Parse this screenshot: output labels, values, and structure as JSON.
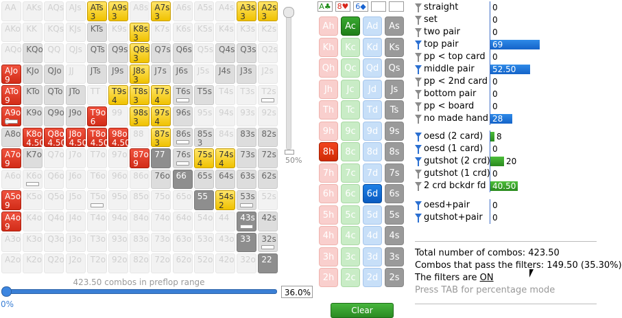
{
  "grid": {
    "rows": [
      [
        "AA",
        "AKs",
        "AQs",
        "AJs",
        "ATs|3",
        "A9s|3",
        "A8s",
        "A7s|3",
        "A6s",
        "A5s",
        "A4s",
        "A3s|3",
        "A2s|3"
      ],
      [
        "AKo",
        "KK",
        "KQs",
        "KJs",
        "KTs",
        "K9s",
        "K8s|3",
        "K7s",
        "K6s",
        "K5s",
        "K4s",
        "K3s",
        "K2s"
      ],
      [
        "AQo",
        "KQo",
        "QQ",
        "QJs",
        "QTs",
        "Q9s",
        "Q8s|3",
        "Q7s",
        "Q6s",
        "Q5s",
        "Q4s",
        "Q3s",
        "Q2s"
      ],
      [
        "AJo|9",
        "KJo",
        "QJo",
        "JJ",
        "JTs",
        "J9s",
        "J8s|3",
        "J7s",
        "J6s",
        "J5s",
        "J4s",
        "J3s",
        "J2s"
      ],
      [
        "ATo|9",
        "KTo",
        "QTo",
        "JTo",
        "TT",
        "T9s|4",
        "T8s|3",
        "T7s|4",
        "T6s",
        "T5s",
        "T4s",
        "T3s",
        "T2s"
      ],
      [
        "A9o|9",
        "K9o",
        "Q9o",
        "J9o",
        "T9o|6",
        "99",
        "98s|3",
        "97s|4",
        "96s",
        "95s",
        "94s",
        "93s",
        "92s"
      ],
      [
        "A8o",
        "K8o|4.50",
        "Q8o|4.50",
        "J8o|4.50",
        "T8o|4.50",
        "98o|4.50",
        "88",
        "87s|3",
        "86s",
        "85s|3",
        "84s",
        "83s",
        "82s"
      ],
      [
        "A7o|9",
        "K7o",
        "Q7o",
        "J7o",
        "T7o",
        "97o",
        "87o|9",
        "77",
        "76s",
        "75s|4",
        "74s|4",
        "73s",
        "72s"
      ],
      [
        "A6o",
        "K6o",
        "Q6o",
        "J6o",
        "T6o",
        "96o",
        "86o",
        "76o",
        "66",
        "65s",
        "64s",
        "63s",
        "62s"
      ],
      [
        "A5o|9",
        "K5o",
        "Q5o",
        "J5o",
        "T5o",
        "95o",
        "85o",
        "75o",
        "65o",
        "55",
        "54s|2",
        "53s",
        "52s"
      ],
      [
        "A4o|9",
        "K4o",
        "Q4o",
        "J4o",
        "T4o",
        "94o",
        "84o",
        "74o",
        "64o",
        "54o",
        "44",
        "43s",
        "42s"
      ],
      [
        "A3o",
        "K3o",
        "Q3o",
        "J3o",
        "T3o",
        "93o",
        "83o",
        "73o",
        "63o",
        "53o",
        "43o",
        "33",
        "32s"
      ],
      [
        "A2o",
        "K2o",
        "Q2o",
        "J2o",
        "T2o",
        "92o",
        "82o",
        "72o",
        "62o",
        "52o",
        "42o",
        "32o",
        "22"
      ]
    ],
    "styles": [
      "eeeeyyeyeeeyy",
      "eeeegeyeeeeee",
      "egeeggyggegge",
      "rggeggyggegge",
      "rgggeyyyggeee",
      "rgggreyygeeee",
      "grrrrreyggegg",
      "rgeeeerdgyygg",
      "eeeeeeegdgggg",
      "reeeeeeeedyge",
      "reeeeeeeeeedg",
      "eeeeeeeeeeedg",
      "eeeeeeeeeeeed"
    ],
    "bars": [
      "4-8",
      "4-12",
      "5-0",
      "6-8",
      "7-8",
      "8-1",
      "9-4",
      "9-11",
      "10-11",
      "11-12"
    ]
  },
  "vslider_value": "50%",
  "range_label": "423.50 combos in preflop range",
  "range_percent": "36.0%",
  "range_min": "0%",
  "suit_boxes": [
    {
      "text": "A♣",
      "color": "#1a8a14"
    },
    {
      "text": "8♥",
      "color": "#d8261a"
    },
    {
      "text": "6◆",
      "color": "#1a64d0"
    },
    {
      "text": "",
      "color": "#000"
    },
    {
      "text": "",
      "color": "#000"
    }
  ],
  "board": {
    "ranks": [
      "A",
      "K",
      "Q",
      "J",
      "T",
      "9",
      "8",
      "7",
      "6",
      "5",
      "4",
      "3",
      "2"
    ],
    "suits": [
      "h",
      "c",
      "d",
      "s"
    ],
    "selected": [
      "Ac",
      "8h",
      "6d"
    ]
  },
  "clear_label": "Clear",
  "filters": [
    {
      "name": "straight",
      "on": false,
      "value": "0",
      "bar": 0,
      "color": "blue"
    },
    {
      "name": "set",
      "on": false,
      "value": "0",
      "bar": 0,
      "color": "blue"
    },
    {
      "name": "two pair",
      "on": false,
      "value": "0",
      "bar": 0,
      "color": "blue"
    },
    {
      "name": "top pair",
      "on": true,
      "value": "69",
      "bar": 0.9,
      "color": "blue"
    },
    {
      "name": "pp < top card",
      "on": false,
      "value": "0",
      "bar": 0,
      "color": "blue"
    },
    {
      "name": "middle pair",
      "on": true,
      "value": "52.50",
      "bar": 0.73,
      "color": "blue"
    },
    {
      "name": "pp < 2nd card",
      "on": false,
      "value": "0",
      "bar": 0,
      "color": "blue"
    },
    {
      "name": "bottom pair",
      "on": false,
      "value": "0",
      "bar": 0,
      "color": "blue"
    },
    {
      "name": "pp < board",
      "on": false,
      "value": "0",
      "bar": 0,
      "color": "blue"
    },
    {
      "name": "no made hand",
      "on": false,
      "value": "28",
      "bar": 0.4,
      "color": "blue"
    },
    {
      "name": "oesd (2 card)",
      "on": true,
      "value": "8",
      "bar": 0.08,
      "color": "green"
    },
    {
      "name": "oesd (1 card)",
      "on": true,
      "value": "0",
      "bar": 0,
      "color": "green"
    },
    {
      "name": "gutshot (2 crd)",
      "on": true,
      "value": "20",
      "bar": 0.25,
      "color": "green"
    },
    {
      "name": "gutshot (1 crd)",
      "on": false,
      "value": "0",
      "bar": 0,
      "color": "green"
    },
    {
      "name": "2 crd bckdr fd",
      "on": false,
      "value": "40.50",
      "bar": 0.5,
      "color": "green"
    },
    {
      "name": "oesd+pair",
      "on": true,
      "value": "0",
      "bar": 0,
      "color": "blue"
    },
    {
      "name": "gutshot+pair",
      "on": true,
      "value": "0",
      "bar": 0,
      "color": "blue"
    }
  ],
  "summary": {
    "total": "Total number of combos: 423.50",
    "pass": "Combos that pass the filters: 149.50 (35.30%)",
    "filters_prefix": "The filters are ",
    "filters_state": "ON",
    "hint": "Press TAB for percentage mode"
  }
}
